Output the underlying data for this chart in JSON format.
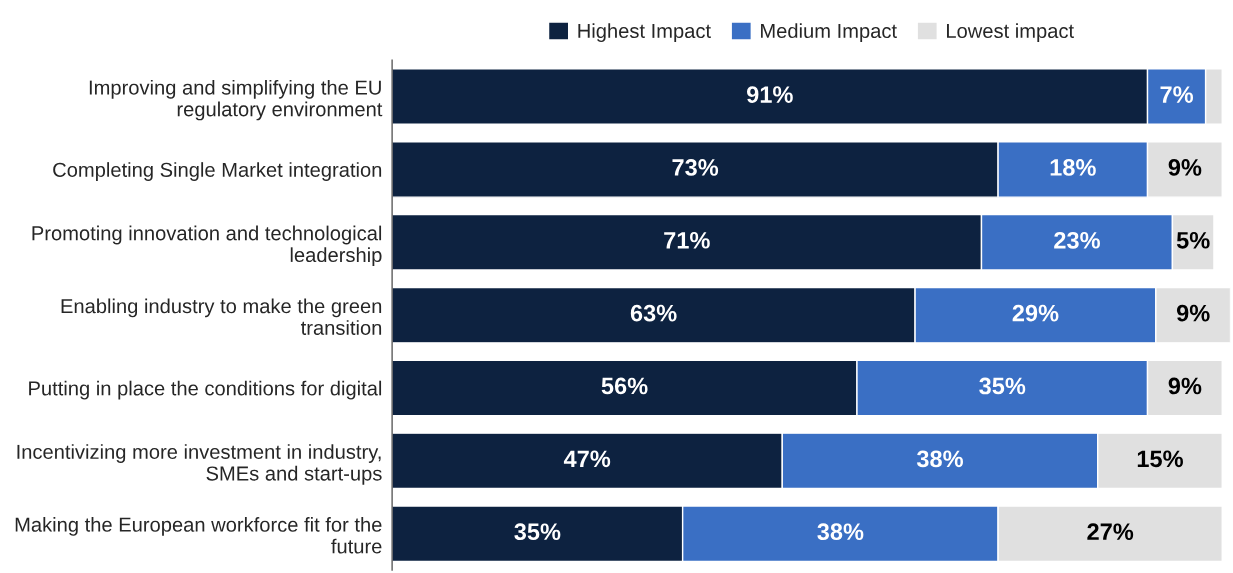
{
  "chart_data": {
    "type": "bar",
    "orientation": "horizontal",
    "stacked": true,
    "categories": [
      "Improving and simplifying the EU regulatory environment",
      "Completing Single Market integration",
      "Promoting innovation and technological leadership",
      "Enabling industry to make the green transition",
      "Putting in place the conditions for digital",
      "Incentivizing more investment in industry, SMEs and start-ups",
      "Making the European workforce fit for the future"
    ],
    "series": [
      {
        "name": "Highest Impact",
        "color": "#0d2240",
        "values": [
          91,
          73,
          71,
          63,
          56,
          47,
          35
        ],
        "value_labels": [
          "91%",
          "73%",
          "71%",
          "63%",
          "56%",
          "47%",
          "35%"
        ]
      },
      {
        "name": "Medium Impact",
        "color": "#3a6fc4",
        "values": [
          7,
          18,
          23,
          29,
          35,
          38,
          38
        ],
        "value_labels": [
          "7%",
          "18%",
          "23%",
          "29%",
          "35%",
          "38%",
          "38%"
        ]
      },
      {
        "name": "Lowest impact",
        "color": "#e0e0e0",
        "values": [
          2,
          9,
          5,
          9,
          9,
          15,
          27
        ],
        "value_labels": [
          null,
          "9%",
          "5%",
          "9%",
          "9%",
          "15%",
          "27%"
        ]
      }
    ],
    "xlim": [
      0,
      101
    ],
    "tick_labels": "y",
    "legend": "top",
    "grid": false
  }
}
